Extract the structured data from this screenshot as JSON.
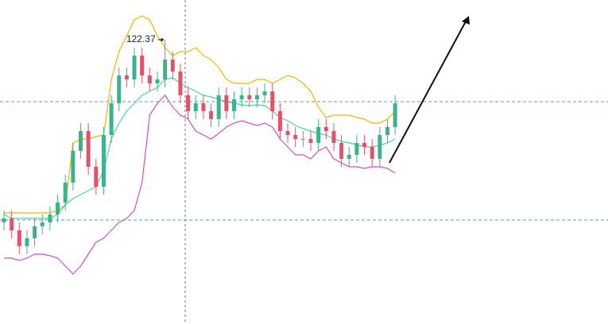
{
  "chart_data": {
    "type": "candlestick",
    "ylim": [
      108.05,
      124.37
    ],
    "up_color": "#3cb38f",
    "down_color": "#e0536b",
    "open": [
      113.17,
      113.37,
      112.77,
      111.97,
      112.37,
      112.97,
      113.17,
      113.57,
      114.17,
      115.17,
      116.77,
      117.77,
      115.97,
      114.97,
      117.57,
      119.17,
      120.57,
      120.37,
      121.57,
      120.57,
      120.17,
      120.37,
      121.37,
      120.77,
      119.57,
      118.77,
      119.17,
      118.77,
      118.37,
      119.57,
      118.77,
      119.37,
      119.57,
      119.37,
      119.57,
      119.77,
      118.77,
      117.77,
      117.57,
      117.37,
      117.37,
      117.17,
      117.97,
      117.77,
      117.17,
      116.37,
      116.57,
      117.17,
      116.97,
      116.37,
      117.57,
      117.97
    ],
    "high": [
      113.77,
      113.77,
      113.17,
      112.77,
      113.37,
      113.57,
      113.97,
      114.57,
      115.57,
      117.17,
      118.17,
      118.17,
      116.37,
      117.97,
      119.57,
      120.97,
      120.97,
      121.97,
      121.97,
      120.97,
      120.77,
      122.37,
      121.77,
      121.17,
      119.97,
      119.57,
      119.57,
      119.17,
      119.97,
      119.97,
      119.77,
      119.97,
      119.97,
      119.97,
      120.17,
      120.17,
      119.17,
      118.17,
      117.97,
      117.77,
      117.77,
      118.37,
      118.37,
      118.17,
      117.57,
      116.97,
      117.57,
      117.57,
      117.37,
      117.97,
      118.37,
      119.57
    ],
    "low": [
      112.77,
      112.37,
      111.57,
      111.57,
      111.97,
      112.57,
      112.77,
      113.17,
      113.77,
      114.77,
      116.37,
      115.57,
      114.57,
      114.57,
      117.17,
      118.77,
      119.97,
      119.97,
      120.17,
      119.77,
      119.77,
      119.97,
      120.37,
      119.17,
      118.37,
      118.37,
      118.37,
      117.97,
      117.97,
      118.37,
      118.37,
      118.97,
      118.97,
      118.97,
      119.17,
      118.37,
      117.37,
      117.17,
      116.97,
      116.97,
      116.77,
      116.77,
      117.37,
      116.77,
      115.97,
      115.97,
      116.17,
      116.57,
      115.97,
      115.97,
      117.17,
      117.57
    ],
    "close": [
      113.37,
      112.77,
      111.97,
      112.37,
      112.97,
      113.17,
      113.57,
      114.17,
      115.17,
      116.77,
      117.77,
      115.97,
      114.97,
      117.57,
      119.17,
      120.57,
      120.37,
      121.57,
      120.57,
      120.17,
      120.37,
      121.37,
      120.77,
      119.57,
      118.77,
      119.17,
      118.77,
      118.37,
      119.57,
      118.77,
      119.37,
      119.57,
      119.37,
      119.57,
      119.77,
      118.77,
      117.77,
      117.57,
      117.37,
      117.37,
      117.17,
      117.97,
      117.77,
      117.17,
      116.37,
      116.57,
      117.17,
      116.97,
      116.37,
      117.57,
      117.97,
      119.17
    ],
    "series": [
      {
        "color": "#f0b400",
        "values": [
          113.65,
          113.65,
          113.65,
          113.65,
          113.65,
          113.65,
          113.65,
          113.77,
          114.05,
          117.17,
          117.37,
          117.37,
          117.49,
          117.57,
          120.37,
          121.77,
          122.57,
          123.37,
          123.57,
          123.37,
          122.57,
          121.97,
          121.57,
          121.77,
          121.77,
          121.97,
          121.57,
          121.37,
          120.97,
          120.37,
          120.17,
          120.17,
          120.17,
          120.37,
          120.37,
          120.17,
          120.37,
          120.57,
          120.45,
          120.17,
          119.77,
          118.97,
          118.45,
          118.57,
          118.57,
          118.57,
          118.45,
          118.37,
          118.17,
          118.17,
          118.37,
          118.77
        ]
      },
      {
        "color": "#4fd1a5",
        "values": [
          113.57,
          113.37,
          113.37,
          113.37,
          113.37,
          113.37,
          113.37,
          113.57,
          114.05,
          114.37,
          114.57,
          114.77,
          114.97,
          115.77,
          117.37,
          118.17,
          118.77,
          119.17,
          119.57,
          119.77,
          119.97,
          120.37,
          120.45,
          120.17,
          119.97,
          119.77,
          119.57,
          119.49,
          119.37,
          119.25,
          119.17,
          119.09,
          119.05,
          119.09,
          119.05,
          118.77,
          118.45,
          118.29,
          118.05,
          117.89,
          117.77,
          117.65,
          117.57,
          117.37,
          117.25,
          117.17,
          117.09,
          116.97,
          116.97,
          117.05,
          117.17,
          117.37
        ]
      },
      {
        "color": "#d64fb8",
        "values": [
          111.37,
          111.37,
          111.25,
          111.37,
          111.57,
          111.57,
          111.49,
          111.37,
          110.97,
          110.57,
          110.97,
          111.57,
          112.17,
          112.37,
          112.77,
          113.17,
          113.37,
          113.77,
          115.17,
          118.57,
          119.17,
          119.57,
          118.97,
          118.57,
          118.37,
          117.77,
          117.57,
          117.37,
          117.65,
          117.97,
          118.17,
          118.29,
          118.17,
          118.05,
          118.17,
          117.97,
          117.37,
          116.97,
          116.57,
          116.57,
          116.37,
          116.77,
          116.97,
          116.37,
          116.17,
          115.97,
          115.97,
          115.89,
          115.97,
          115.97,
          115.89,
          115.65
        ]
      }
    ],
    "levels": [
      119.25,
      113.29
    ],
    "annotation": 122.37
  }
}
